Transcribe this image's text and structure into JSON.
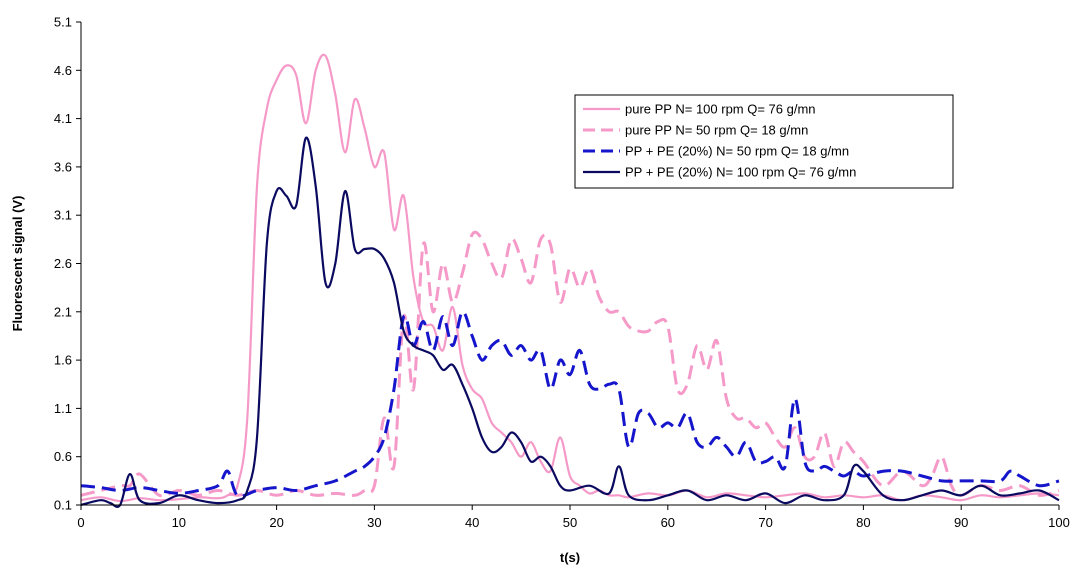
{
  "chart_data": {
    "type": "line",
    "title": "",
    "xlabel": "t(s)",
    "ylabel": "Fluorescent signal (V)",
    "xlim": [
      0,
      100
    ],
    "ylim": [
      0.1,
      5.1
    ],
    "xticks": [
      "0",
      "10",
      "20",
      "30",
      "40",
      "50",
      "60",
      "70",
      "80",
      "90",
      "100"
    ],
    "yticks": [
      "0.1",
      "0.6",
      "1.1",
      "1.6",
      "2.1",
      "2.6",
      "3.1",
      "3.6",
      "4.1",
      "4.6",
      "5.1"
    ],
    "grid": false,
    "legend_position": "top-right",
    "series": [
      {
        "name": "pure PP N= 100 rpm Q= 76 g/mn",
        "color": "#f59ac8",
        "dash": "solid",
        "x": [
          0,
          2,
          4,
          6,
          8,
          10,
          12,
          14,
          15,
          16,
          17,
          18,
          19,
          20,
          21,
          22,
          23,
          24,
          25,
          26,
          27,
          28,
          29,
          30,
          31,
          32,
          33,
          34,
          35,
          36,
          37,
          38,
          39,
          40,
          41,
          42,
          43,
          44,
          45,
          46,
          47,
          48,
          49,
          50,
          51,
          52,
          53,
          54,
          55,
          56,
          58,
          60,
          62,
          64,
          66,
          68,
          70,
          72,
          74,
          76,
          78,
          80,
          82,
          84,
          86,
          88,
          90,
          92,
          94,
          96,
          98,
          100
        ],
        "y": [
          0.15,
          0.18,
          0.14,
          0.17,
          0.15,
          0.16,
          0.18,
          0.17,
          0.2,
          0.3,
          1.0,
          3.4,
          4.2,
          4.5,
          4.65,
          4.55,
          4.05,
          4.6,
          4.75,
          4.35,
          3.75,
          4.3,
          4.0,
          3.6,
          3.75,
          2.95,
          3.3,
          2.45,
          2.0,
          1.95,
          1.7,
          2.15,
          1.55,
          1.3,
          1.2,
          0.95,
          0.85,
          0.75,
          0.6,
          0.75,
          0.55,
          0.45,
          0.8,
          0.4,
          0.3,
          0.22,
          0.25,
          0.2,
          0.2,
          0.18,
          0.22,
          0.2,
          0.25,
          0.18,
          0.22,
          0.2,
          0.18,
          0.2,
          0.22,
          0.18,
          0.2,
          0.18,
          0.2,
          0.15,
          0.2,
          0.18,
          0.15,
          0.2,
          0.18,
          0.2,
          0.22,
          0.2
        ]
      },
      {
        "name": "pure PP N= 50 rpm Q= 18 g/mn",
        "color": "#f59ac8",
        "dash": "dashed",
        "x": [
          0,
          2,
          4,
          5,
          6,
          8,
          10,
          12,
          14,
          16,
          18,
          20,
          22,
          24,
          26,
          28,
          29,
          30,
          31,
          32,
          33,
          34,
          35,
          36,
          37,
          38,
          39,
          40,
          41,
          42,
          43,
          44,
          45,
          46,
          47,
          48,
          49,
          50,
          51,
          52,
          53,
          54,
          55,
          56,
          57,
          58,
          59,
          60,
          61,
          62,
          63,
          64,
          65,
          66,
          67,
          68,
          69,
          70,
          71,
          72,
          73,
          74,
          75,
          76,
          77,
          78,
          79,
          80,
          82,
          84,
          86,
          87,
          88,
          89,
          90,
          92,
          94,
          96,
          98,
          100
        ],
        "y": [
          0.2,
          0.25,
          0.3,
          0.3,
          0.42,
          0.2,
          0.25,
          0.2,
          0.25,
          0.2,
          0.25,
          0.2,
          0.25,
          0.2,
          0.22,
          0.2,
          0.25,
          0.3,
          1.0,
          0.5,
          2.05,
          1.3,
          2.8,
          2.1,
          2.6,
          2.2,
          2.5,
          2.9,
          2.85,
          2.6,
          2.45,
          2.85,
          2.65,
          2.4,
          2.85,
          2.8,
          2.2,
          2.55,
          2.35,
          2.55,
          2.25,
          2.1,
          2.1,
          1.95,
          1.9,
          1.9,
          2.0,
          1.95,
          1.3,
          1.35,
          1.75,
          1.5,
          1.8,
          1.2,
          1.0,
          1.0,
          0.9,
          0.95,
          0.8,
          0.7,
          0.9,
          0.6,
          0.6,
          0.85,
          0.5,
          0.75,
          0.65,
          0.55,
          0.3,
          0.45,
          0.3,
          0.4,
          0.6,
          0.3,
          0.2,
          0.3,
          0.25,
          0.3,
          0.2,
          0.25
        ]
      },
      {
        "name": "PP + PE (20%) N= 50 rpm Q= 18 g/mn",
        "color": "#1515cc",
        "dash": "dashed",
        "x": [
          0,
          2,
          4,
          6,
          8,
          10,
          12,
          14,
          15,
          16,
          18,
          20,
          22,
          24,
          26,
          28,
          29,
          30,
          31,
          32,
          33,
          34,
          35,
          36,
          37,
          38,
          39,
          40,
          41,
          42,
          43,
          44,
          45,
          46,
          47,
          48,
          49,
          50,
          51,
          52,
          53,
          54,
          55,
          56,
          57,
          58,
          59,
          60,
          61,
          62,
          63,
          64,
          65,
          66,
          67,
          68,
          69,
          70,
          71,
          72,
          73,
          74,
          75,
          76,
          77,
          78,
          79,
          80,
          82,
          84,
          86,
          88,
          90,
          92,
          94,
          95,
          96,
          98,
          100
        ],
        "y": [
          0.3,
          0.28,
          0.25,
          0.28,
          0.25,
          0.22,
          0.25,
          0.3,
          0.45,
          0.2,
          0.25,
          0.28,
          0.25,
          0.3,
          0.35,
          0.45,
          0.5,
          0.6,
          0.8,
          1.3,
          2.05,
          1.75,
          2.0,
          1.7,
          2.05,
          1.75,
          2.1,
          1.85,
          1.6,
          1.75,
          1.8,
          1.65,
          1.75,
          1.6,
          1.7,
          1.3,
          1.6,
          1.45,
          1.7,
          1.35,
          1.3,
          1.35,
          1.3,
          0.7,
          1.05,
          1.05,
          0.9,
          0.95,
          0.9,
          1.05,
          0.75,
          0.7,
          0.8,
          0.7,
          0.6,
          0.75,
          0.55,
          0.55,
          0.6,
          0.5,
          1.2,
          0.55,
          0.45,
          0.5,
          0.45,
          0.4,
          0.45,
          0.4,
          0.45,
          0.45,
          0.4,
          0.35,
          0.35,
          0.35,
          0.35,
          0.45,
          0.4,
          0.3,
          0.35
        ]
      },
      {
        "name": "PP + PE (20%) N= 100 rpm Q= 76 g/mn",
        "color": "#0a0a60",
        "dash": "solid",
        "x": [
          0,
          2,
          3,
          4,
          5,
          6,
          8,
          10,
          12,
          14,
          16,
          17,
          18,
          19,
          20,
          21,
          22,
          23,
          24,
          25,
          26,
          27,
          28,
          29,
          30,
          31,
          32,
          33,
          34,
          35,
          36,
          37,
          38,
          39,
          40,
          41,
          42,
          43,
          44,
          45,
          46,
          47,
          48,
          49,
          50,
          52,
          54,
          55,
          56,
          58,
          60,
          62,
          64,
          66,
          68,
          70,
          72,
          74,
          76,
          78,
          79,
          80,
          82,
          84,
          86,
          88,
          90,
          92,
          94,
          96,
          98,
          100
        ],
        "y": [
          0.1,
          0.15,
          0.12,
          0.1,
          0.42,
          0.15,
          0.12,
          0.2,
          0.15,
          0.12,
          0.15,
          0.25,
          0.8,
          2.8,
          3.35,
          3.3,
          3.2,
          3.9,
          3.4,
          2.4,
          2.6,
          3.35,
          2.75,
          2.75,
          2.75,
          2.65,
          2.4,
          1.9,
          1.75,
          1.7,
          1.65,
          1.5,
          1.55,
          1.35,
          1.1,
          0.8,
          0.65,
          0.7,
          0.85,
          0.75,
          0.55,
          0.6,
          0.5,
          0.3,
          0.25,
          0.3,
          0.22,
          0.5,
          0.2,
          0.15,
          0.2,
          0.25,
          0.15,
          0.2,
          0.15,
          0.22,
          0.12,
          0.2,
          0.15,
          0.2,
          0.5,
          0.45,
          0.2,
          0.15,
          0.2,
          0.25,
          0.2,
          0.3,
          0.2,
          0.22,
          0.25,
          0.15
        ]
      }
    ]
  }
}
